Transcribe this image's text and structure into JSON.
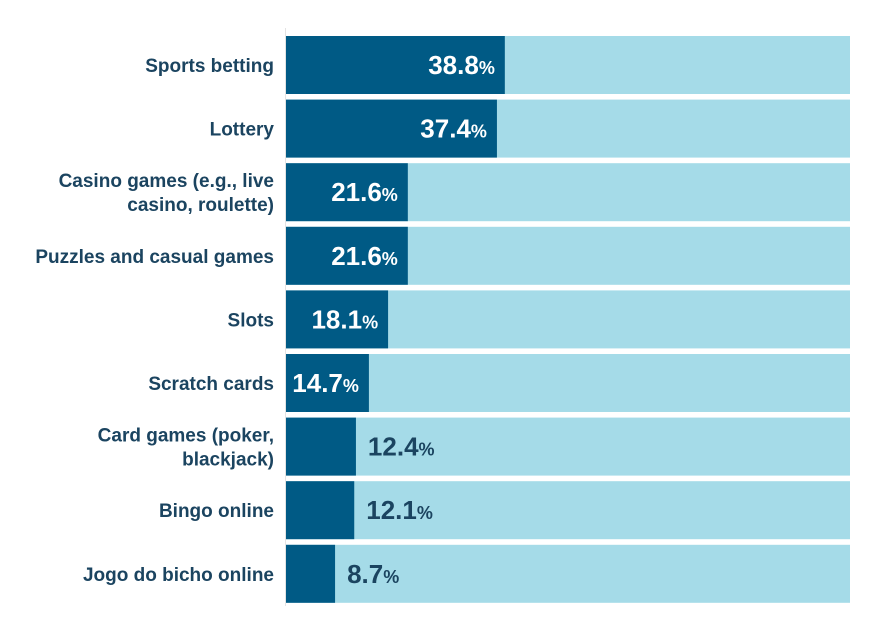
{
  "chart_data": {
    "type": "bar",
    "orientation": "horizontal",
    "categories": [
      [
        "Sports betting"
      ],
      [
        "Lottery"
      ],
      [
        "Casino games (e.g., live",
        "casino, roulette)"
      ],
      [
        "Puzzles and casual games"
      ],
      [
        "Slots"
      ],
      [
        "Scratch cards"
      ],
      [
        "Card games (poker,",
        "blackjack)"
      ],
      [
        "Bingo online"
      ],
      [
        "Jogo do bicho online"
      ]
    ],
    "values": [
      38.8,
      37.4,
      21.6,
      21.6,
      18.1,
      14.7,
      12.4,
      12.1,
      8.7
    ],
    "value_labels": [
      "38.8",
      "37.4",
      "21.6",
      "21.6",
      "18.1",
      "14.7",
      "12.4",
      "12.1",
      "8.7"
    ],
    "value_suffix": "%",
    "xlim": [
      0,
      100
    ],
    "title": "",
    "xlabel": "",
    "ylabel": "",
    "grid": false,
    "legend": "none",
    "colors": {
      "bar": "#005a85",
      "background_bar": "#a5dbe8",
      "label_on_bar": "#ffffff",
      "label_off_bar": "#1b4460",
      "category_text": "#1b4460",
      "axis_line": "#e3e3e3"
    }
  }
}
